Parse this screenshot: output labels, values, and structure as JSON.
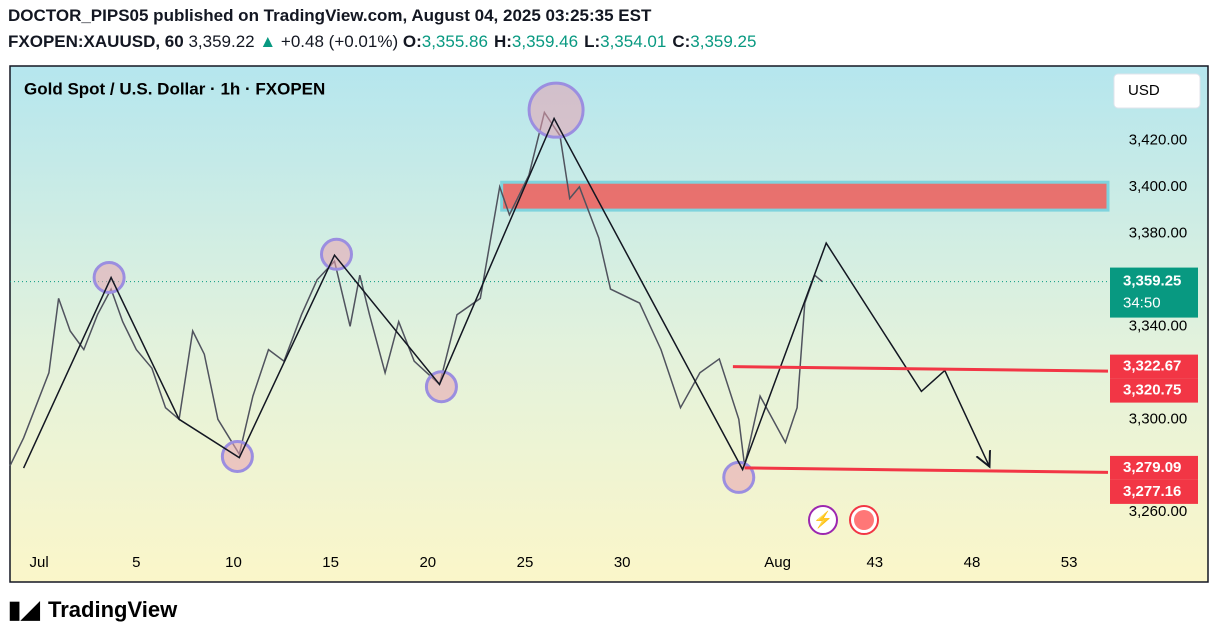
{
  "header": {
    "publish_line": "DOCTOR_PIPS05 published on TradingView.com, August 04, 2025 03:25:35 EST",
    "symbol": "FXOPEN:XAUUSD, 60",
    "last": "3,359.22",
    "change": "+0.48 (+0.01%)",
    "ohlc": [
      {
        "key": "O:",
        "value": "3,355.86"
      },
      {
        "key": "H:",
        "value": "3,359.46"
      },
      {
        "key": "L:",
        "value": "3,354.01"
      },
      {
        "key": "C:",
        "value": "3,359.25"
      }
    ]
  },
  "chart_data": {
    "type": "line",
    "title": "Gold Spot / U.S. Dollar · 1h · FXOPEN",
    "currency": "USD",
    "color": "#50535e",
    "x": [
      -1.5,
      -0.8,
      0.5,
      1.0,
      1.6,
      2.3,
      3.0,
      3.7,
      4.3,
      5.0,
      5.8,
      6.5,
      7.2,
      7.9,
      8.5,
      9.2,
      10.3,
      11.0,
      11.8,
      12.6,
      13.5,
      14.3,
      15.2,
      16.0,
      16.5,
      17.0,
      17.8,
      18.5,
      19.3,
      20.6,
      21.5,
      22.7,
      23.7,
      24.2,
      25.2,
      26.0,
      26.8,
      27.3,
      27.8,
      28.8,
      29.4,
      30.9,
      32.0,
      33.0,
      34.0,
      35.0,
      36.0,
      36.3,
      37.1,
      38.4,
      39.0,
      39.4,
      39.9,
      40.3
    ],
    "values": [
      3280,
      3292,
      3320,
      3352,
      3338,
      3330,
      3345,
      3356,
      3342,
      3330,
      3322,
      3305,
      3300,
      3338,
      3328,
      3300,
      3285,
      3310,
      3330,
      3325,
      3345,
      3360,
      3368,
      3340,
      3362,
      3345,
      3320,
      3342,
      3325,
      3315,
      3345,
      3352,
      3400,
      3388,
      3405,
      3432,
      3422,
      3395,
      3400,
      3378,
      3356,
      3350,
      3330,
      3305,
      3320,
      3326,
      3300,
      3280,
      3310,
      3290,
      3305,
      3350,
      3362,
      3359.25
    ],
    "xlim": [
      -1.5,
      55
    ],
    "ylim": [
      3230,
      3452
    ],
    "xticks": [
      {
        "value": 0,
        "label": "Jul"
      },
      5,
      10,
      15,
      20,
      25,
      30,
      {
        "value": 38,
        "label": "Aug"
      },
      43,
      48,
      53
    ],
    "yticks": [
      {
        "value": 3420,
        "label": "3,420.00"
      },
      {
        "value": 3400,
        "label": "3,400.00"
      },
      {
        "value": 3380,
        "label": "3,380.00"
      },
      {
        "value": 3340,
        "label": "3,340.00"
      },
      {
        "value": 3300,
        "label": "3,300.00"
      },
      {
        "value": 3260,
        "label": "3,260.00"
      }
    ],
    "last_price": {
      "value": 3359.25,
      "label": "3,359.25",
      "countdown": "34:50",
      "color": "#089981"
    },
    "price_labels": [
      {
        "value": 3322.67,
        "label": "3,322.67"
      },
      {
        "value": 3320.75,
        "label": "3,320.75"
      },
      {
        "value": 3279.09,
        "label": "3,279.09"
      },
      {
        "value": 3277.16,
        "label": "3,277.16"
      }
    ],
    "level_color": "#f23645",
    "levels": [
      {
        "x": [
          35.7,
          55
        ],
        "values": [
          3322.67,
          3320.75
        ]
      },
      {
        "x": [
          36.3,
          55
        ],
        "values": [
          3279.09,
          3277.16
        ]
      }
    ],
    "zone": {
      "x": [
        23.8,
        55
      ],
      "values": [
        3390,
        3402
      ]
    },
    "zigzag": {
      "x": [
        -0.8,
        3.7,
        7.2,
        10.3,
        15.2,
        20.6,
        26.5,
        36.2,
        40.5,
        45.4,
        46.6,
        48.9
      ],
      "values": [
        3279,
        3361,
        3300,
        3283.5,
        3370.6,
        3315,
        3429.4,
        3278.4,
        3375.8,
        3312,
        3321,
        3279.6
      ]
    },
    "circles": {
      "x": [
        3.6,
        10.2,
        15.3,
        20.7,
        26.6,
        36.0
      ],
      "values": [
        3361,
        3284,
        3371,
        3314,
        3433,
        3275
      ]
    }
  },
  "footer": {
    "brand": "TradingView"
  }
}
